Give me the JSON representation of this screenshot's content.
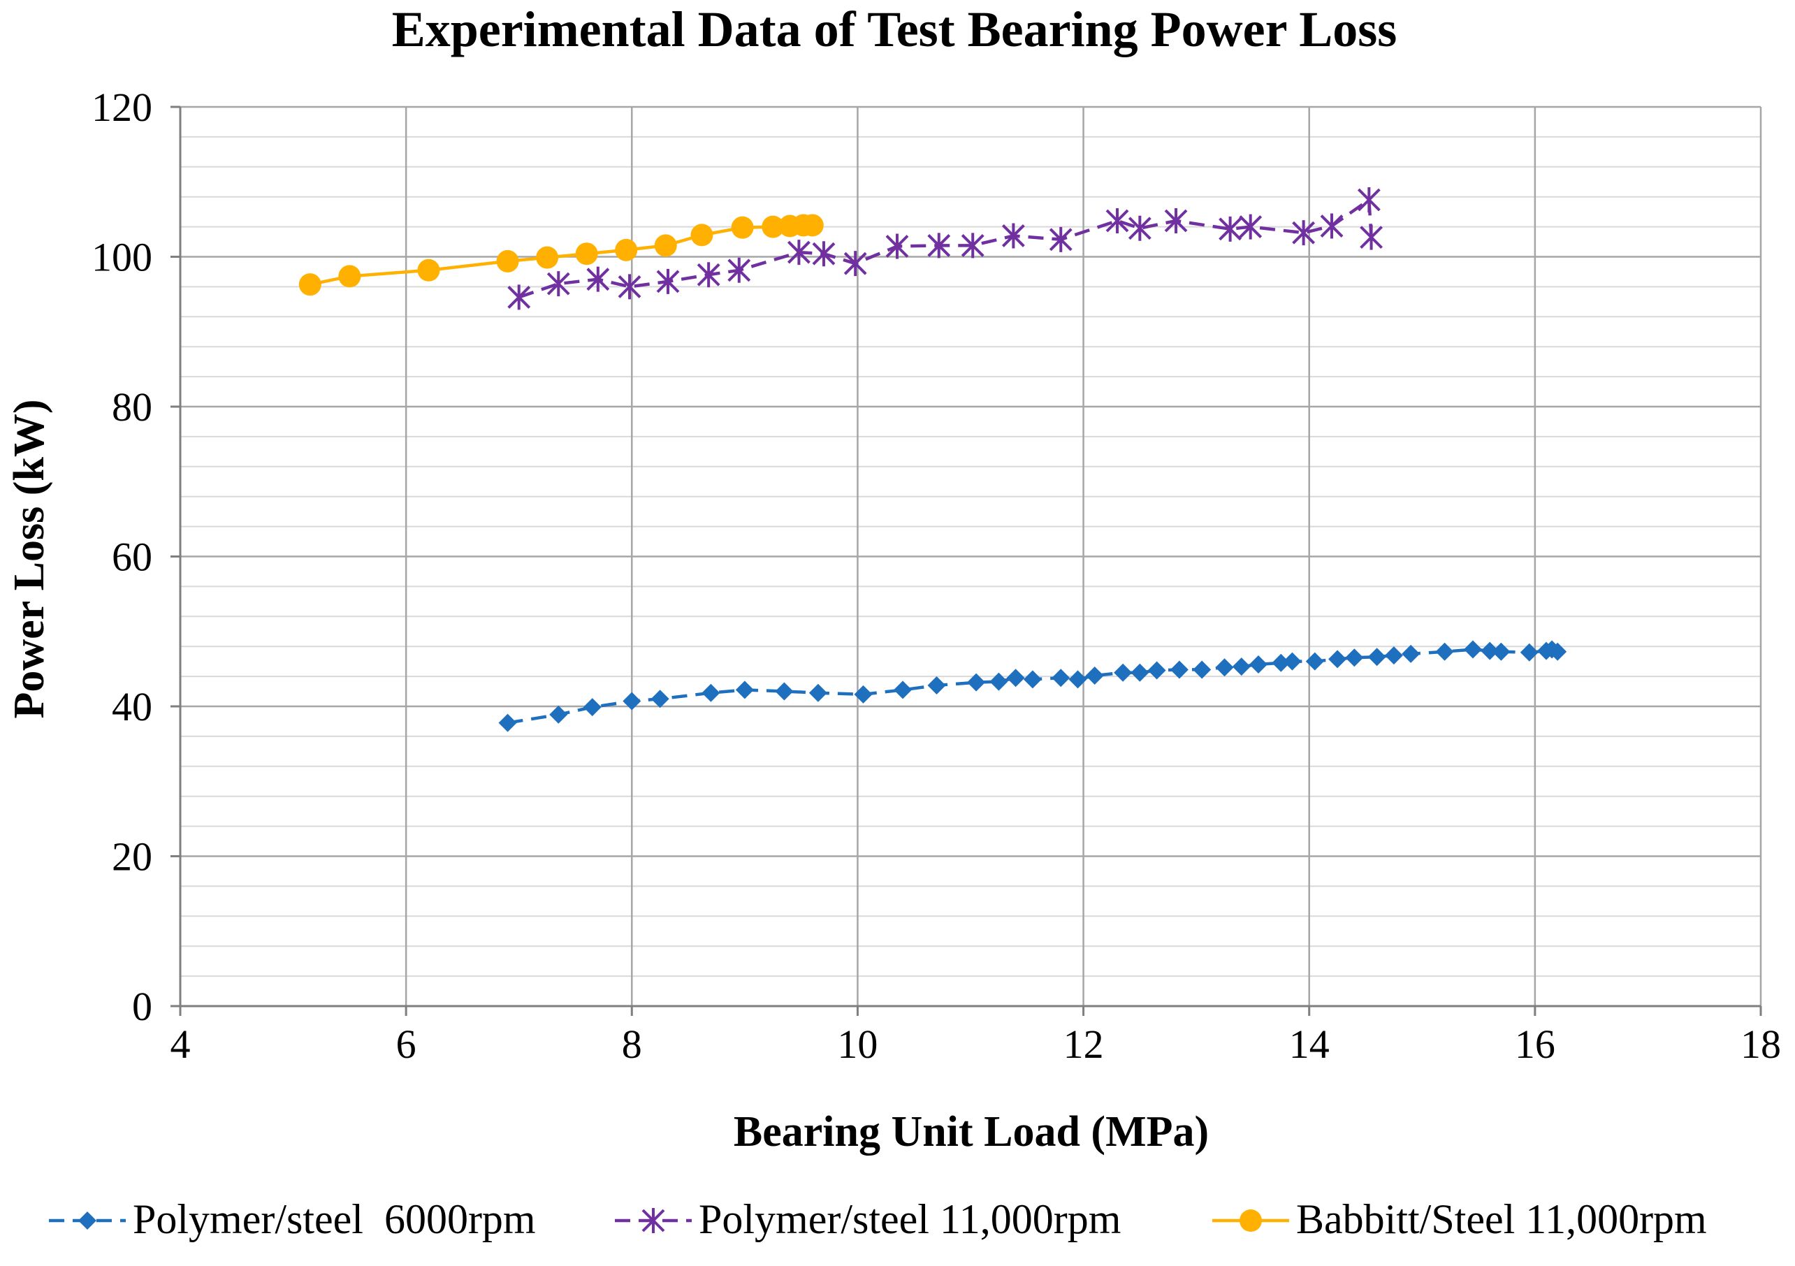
{
  "chart_data": {
    "type": "line",
    "title": "Experimental Data of Test Bearing Power Loss",
    "xlabel": "Bearing Unit Load (MPa)",
    "ylabel": "Power Loss (kW)",
    "xlim": [
      4,
      18
    ],
    "ylim": [
      0,
      120
    ],
    "x_ticks": [
      4,
      6,
      8,
      10,
      12,
      14,
      16,
      18
    ],
    "y_ticks": [
      0,
      20,
      40,
      60,
      80,
      100,
      120
    ],
    "x_tick_labels": [
      "4",
      "6",
      "8",
      "10",
      "12",
      "14",
      "16",
      "18"
    ],
    "y_tick_labels": [
      "0",
      "20",
      "40",
      "60",
      "80",
      "100",
      "120"
    ],
    "grid": true,
    "legend_position": "bottom",
    "series": [
      {
        "name": "Polymer/steel  6000rpm",
        "color": "#1f6fbf",
        "line_style": "dashed",
        "marker": "diamond",
        "points": [
          [
            6.9,
            37.8
          ],
          [
            7.35,
            38.9
          ],
          [
            7.65,
            39.9
          ],
          [
            8.0,
            40.7
          ],
          [
            8.25,
            41.0
          ],
          [
            8.7,
            41.8
          ],
          [
            9.0,
            42.2
          ],
          [
            9.35,
            42.0
          ],
          [
            9.65,
            41.8
          ],
          [
            10.05,
            41.6
          ],
          [
            10.4,
            42.2
          ],
          [
            10.7,
            42.8
          ],
          [
            11.05,
            43.2
          ],
          [
            11.25,
            43.3
          ],
          [
            11.4,
            43.8
          ],
          [
            11.55,
            43.6
          ],
          [
            11.8,
            43.8
          ],
          [
            11.95,
            43.6
          ],
          [
            12.1,
            44.1
          ],
          [
            12.35,
            44.5
          ],
          [
            12.5,
            44.5
          ],
          [
            12.65,
            44.8
          ],
          [
            12.85,
            44.9
          ],
          [
            13.05,
            44.9
          ],
          [
            13.25,
            45.2
          ],
          [
            13.4,
            45.3
          ],
          [
            13.55,
            45.6
          ],
          [
            13.75,
            45.8
          ],
          [
            13.85,
            46.0
          ],
          [
            14.05,
            46.0
          ],
          [
            14.25,
            46.3
          ],
          [
            14.4,
            46.5
          ],
          [
            14.6,
            46.6
          ],
          [
            14.75,
            46.8
          ],
          [
            14.9,
            47.0
          ],
          [
            15.2,
            47.3
          ],
          [
            15.45,
            47.6
          ],
          [
            15.6,
            47.4
          ],
          [
            15.7,
            47.3
          ],
          [
            15.95,
            47.2
          ],
          [
            16.1,
            47.4
          ],
          [
            16.15,
            47.6
          ],
          [
            16.2,
            47.3
          ]
        ]
      },
      {
        "name": "Polymer/steel 11,000rpm",
        "color": "#7030a0",
        "line_style": "dashed",
        "marker": "asterisk",
        "points": [
          [
            7.0,
            94.6
          ],
          [
            7.35,
            96.4
          ],
          [
            7.7,
            97.0
          ],
          [
            7.98,
            96.0
          ],
          [
            8.32,
            96.7
          ],
          [
            8.68,
            97.6
          ],
          [
            8.95,
            98.2
          ],
          [
            9.48,
            100.6
          ],
          [
            9.7,
            100.4
          ],
          [
            9.98,
            99.1
          ],
          [
            10.35,
            101.4
          ],
          [
            10.72,
            101.5
          ],
          [
            11.02,
            101.5
          ],
          [
            11.38,
            102.8
          ],
          [
            11.8,
            102.3
          ],
          [
            12.3,
            104.8
          ],
          [
            12.5,
            103.8
          ],
          [
            12.82,
            104.8
          ],
          [
            13.3,
            103.7
          ],
          [
            13.48,
            104.0
          ],
          [
            13.95,
            103.2
          ],
          [
            14.2,
            104.1
          ],
          [
            14.53,
            107.6
          ],
          [
            14.55,
            102.6
          ]
        ]
      },
      {
        "name": "Babbitt/Steel 11,000rpm",
        "color": "#ffb000",
        "line_style": "solid",
        "marker": "circle",
        "points": [
          [
            5.15,
            96.3
          ],
          [
            5.5,
            97.4
          ],
          [
            6.2,
            98.2
          ],
          [
            6.9,
            99.4
          ],
          [
            7.25,
            99.9
          ],
          [
            7.6,
            100.4
          ],
          [
            7.95,
            100.9
          ],
          [
            8.3,
            101.5
          ],
          [
            8.62,
            102.9
          ],
          [
            8.98,
            103.9
          ],
          [
            9.25,
            104.0
          ],
          [
            9.4,
            104.1
          ],
          [
            9.52,
            104.2
          ],
          [
            9.6,
            104.2
          ]
        ]
      }
    ]
  }
}
